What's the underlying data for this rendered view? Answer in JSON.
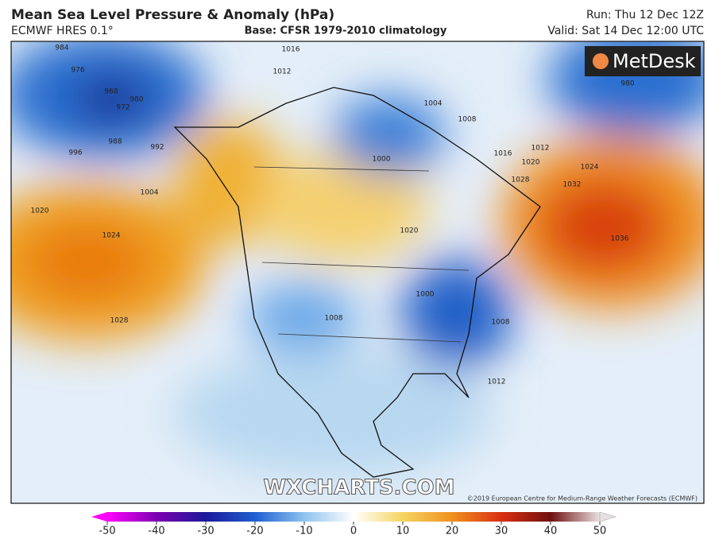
{
  "header": {
    "title": "Mean Sea Level Pressure & Anomaly (hPa)",
    "model": "ECMWF HRES 0.1°",
    "base": "Base: CFSR 1979-2010 climatology",
    "run": "Run: Thu 12 Dec 12Z",
    "valid": "Valid: Sat 14 Dec 12:00 UTC"
  },
  "map": {
    "logo": "MetDesk",
    "watermark": "WXCHARTS.COM",
    "copyright": "©2019 European Centre for Medium-Range Weather Forecasts (ECMWF)",
    "contour_labels": [
      "984",
      "976",
      "968",
      "972",
      "980",
      "988",
      "996",
      "992",
      "1004",
      "1020",
      "1024",
      "1028",
      "1016",
      "1012",
      "1004",
      "1008",
      "1016",
      "1012",
      "1020",
      "1024",
      "1028",
      "1032",
      "1036",
      "1000",
      "1020",
      "1000",
      "1008",
      "1012",
      "980",
      "1008"
    ]
  },
  "colorbar": {
    "range": [
      -50,
      50
    ],
    "ticks": [
      -50,
      -40,
      -30,
      -20,
      -10,
      0,
      10,
      20,
      30,
      40,
      50
    ]
  }
}
